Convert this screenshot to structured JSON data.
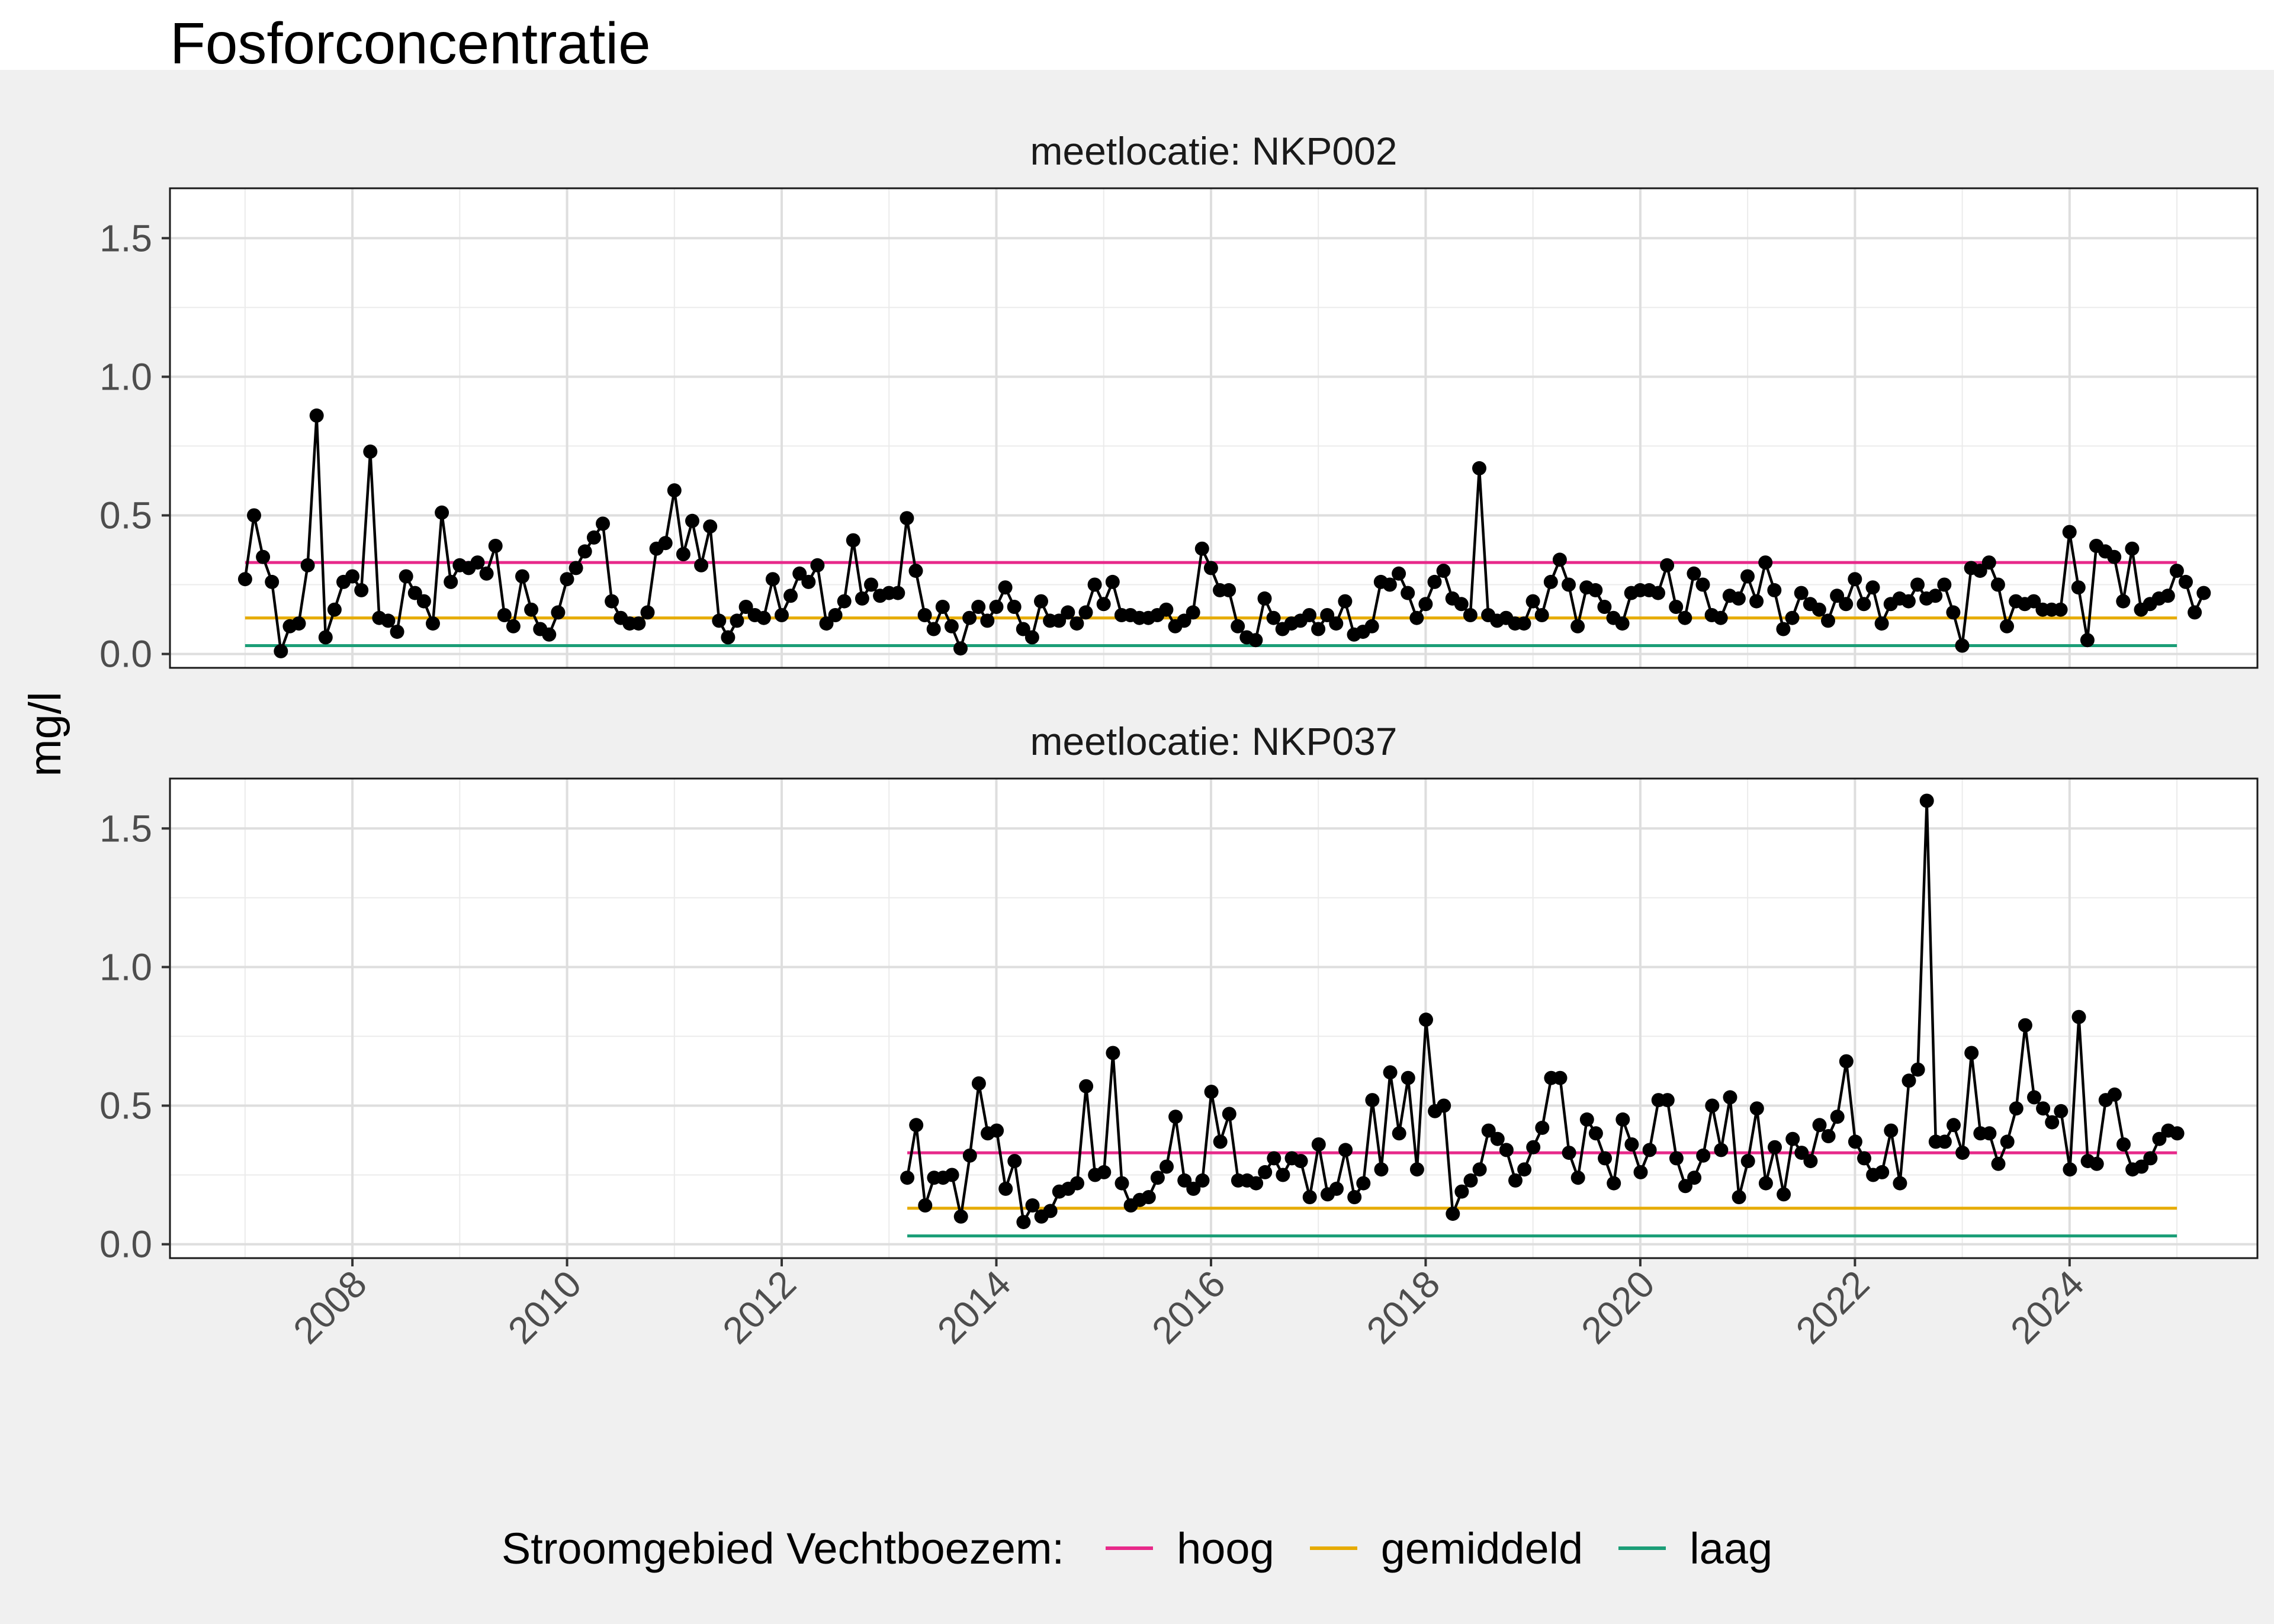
{
  "title": "Fosforconcentratie",
  "ylabel": "mg/l",
  "colors": {
    "hoog": "#e7298a",
    "gemiddeld": "#e6ab02",
    "laag": "#1b9e77",
    "series": "#000000",
    "background": "#f0f0f0"
  },
  "legend": {
    "title": "Stroomgebied Vechtboezem:",
    "items": [
      {
        "label": "hoog",
        "color": "#e7298a"
      },
      {
        "label": "gemiddeld",
        "color": "#e6ab02"
      },
      {
        "label": "laag",
        "color": "#1b9e77"
      }
    ]
  },
  "chart_data": {
    "type": "line",
    "title": "Fosforconcentratie",
    "xlabel": "",
    "ylabel": "mg/l",
    "ylim": [
      -0.05,
      1.68
    ],
    "xlim": [
      2006.3,
      2025.75
    ],
    "xticks": [
      2008,
      2010,
      2012,
      2014,
      2016,
      2018,
      2020,
      2022,
      2024
    ],
    "yticks": [
      0.0,
      0.5,
      1.0,
      1.5
    ],
    "ytick_labels": [
      "0.0",
      "0.5",
      "1.0",
      "1.5"
    ],
    "grid": true,
    "legend_position": "bottom",
    "panels": [
      {
        "label": "meetlocatie: NKP002",
        "x_start": 2007.0,
        "x_step": 0.08333,
        "values": [
          0.27,
          0.5,
          0.35,
          0.26,
          0.01,
          0.1,
          0.11,
          0.32,
          0.86,
          0.06,
          0.16,
          0.26,
          0.28,
          0.23,
          0.73,
          0.13,
          0.12,
          0.08,
          0.28,
          0.22,
          0.19,
          0.11,
          0.51,
          0.26,
          0.32,
          0.31,
          0.33,
          0.29,
          0.39,
          0.14,
          0.1,
          0.28,
          0.16,
          0.09,
          0.07,
          0.15,
          0.27,
          0.31,
          0.37,
          0.42,
          0.47,
          0.19,
          0.13,
          0.11,
          0.11,
          0.15,
          0.38,
          0.4,
          0.59,
          0.36,
          0.48,
          0.32,
          0.46,
          0.12,
          0.06,
          0.12,
          0.17,
          0.14,
          0.13,
          0.27,
          0.14,
          0.21,
          0.29,
          0.26,
          0.32,
          0.11,
          0.14,
          0.19,
          0.41,
          0.2,
          0.25,
          0.21,
          0.22,
          0.22,
          0.49,
          0.3,
          0.14,
          0.09,
          0.17,
          0.1,
          0.02,
          0.13,
          0.17,
          0.12,
          0.17,
          0.24,
          0.17,
          0.09,
          0.06,
          0.19,
          0.12,
          0.12,
          0.15,
          0.11,
          0.15,
          0.25,
          0.18,
          0.26,
          0.14,
          0.14,
          0.13,
          0.13,
          0.14,
          0.16,
          0.1,
          0.12,
          0.15,
          0.38,
          0.31,
          0.23,
          0.23,
          0.1,
          0.06,
          0.05,
          0.2,
          0.13,
          0.09,
          0.11,
          0.12,
          0.14,
          0.09,
          0.14,
          0.11,
          0.19,
          0.07,
          0.08,
          0.1,
          0.26,
          0.25,
          0.29,
          0.22,
          0.13,
          0.18,
          0.26,
          0.3,
          0.2,
          0.18,
          0.14,
          0.67,
          0.14,
          0.12,
          0.13,
          0.11,
          0.11,
          0.19,
          0.14,
          0.26,
          0.34,
          0.25,
          0.1,
          0.24,
          0.23,
          0.17,
          0.13,
          0.11,
          0.22,
          0.23,
          0.23,
          0.22,
          0.32,
          0.17,
          0.13,
          0.29,
          0.25,
          0.14,
          0.13,
          0.21,
          0.2,
          0.28,
          0.19,
          0.33,
          0.23,
          0.09,
          0.13,
          0.22,
          0.18,
          0.16,
          0.12,
          0.21,
          0.18,
          0.27,
          0.18,
          0.24,
          0.11,
          0.18,
          0.2,
          0.19,
          0.25,
          0.2,
          0.21,
          0.25,
          0.15,
          0.03,
          0.31,
          0.3,
          0.33,
          0.25,
          0.1,
          0.19,
          0.18,
          0.19,
          0.16,
          0.16,
          0.16,
          0.44,
          0.24,
          0.05,
          0.39,
          0.37,
          0.35,
          0.19,
          0.38,
          0.16,
          0.18,
          0.2,
          0.21,
          0.3,
          0.26,
          0.15,
          0.22
        ]
      },
      {
        "label": "meetlocatie: NKP037",
        "x_start": 2013.17,
        "x_step": 0.08333,
        "values": [
          0.24,
          0.43,
          0.14,
          0.24,
          0.24,
          0.25,
          0.1,
          0.32,
          0.58,
          0.4,
          0.41,
          0.2,
          0.3,
          0.08,
          0.14,
          0.1,
          0.12,
          0.19,
          0.2,
          0.22,
          0.57,
          0.25,
          0.26,
          0.69,
          0.22,
          0.14,
          0.16,
          0.17,
          0.24,
          0.28,
          0.46,
          0.23,
          0.2,
          0.23,
          0.55,
          0.37,
          0.47,
          0.23,
          0.23,
          0.22,
          0.26,
          0.31,
          0.25,
          0.31,
          0.3,
          0.17,
          0.36,
          0.18,
          0.2,
          0.34,
          0.17,
          0.22,
          0.52,
          0.27,
          0.62,
          0.4,
          0.6,
          0.27,
          0.81,
          0.48,
          0.5,
          0.11,
          0.19,
          0.23,
          0.27,
          0.41,
          0.38,
          0.34,
          0.23,
          0.27,
          0.35,
          0.42,
          0.6,
          0.6,
          0.33,
          0.24,
          0.45,
          0.4,
          0.31,
          0.22,
          0.45,
          0.36,
          0.26,
          0.34,
          0.52,
          0.52,
          0.31,
          0.21,
          0.24,
          0.32,
          0.5,
          0.34,
          0.53,
          0.17,
          0.3,
          0.49,
          0.22,
          0.35,
          0.18,
          0.38,
          0.33,
          0.3,
          0.43,
          0.39,
          0.46,
          0.66,
          0.37,
          0.31,
          0.25,
          0.26,
          0.41,
          0.22,
          0.59,
          0.63,
          1.6,
          0.37,
          0.37,
          0.43,
          0.33,
          0.69,
          0.4,
          0.4,
          0.29,
          0.37,
          0.49,
          0.79,
          0.53,
          0.49,
          0.44,
          0.48,
          0.27,
          0.82,
          0.3,
          0.29,
          0.52,
          0.54,
          0.36,
          0.27,
          0.28,
          0.31,
          0.38,
          0.41,
          0.4
        ]
      }
    ],
    "reference_lines": [
      {
        "name": "hoog",
        "value": 0.33,
        "color": "#e7298a"
      },
      {
        "name": "gemiddeld",
        "value": 0.13,
        "color": "#e6ab02"
      },
      {
        "name": "laag",
        "value": 0.03,
        "color": "#1b9e77"
      }
    ]
  }
}
